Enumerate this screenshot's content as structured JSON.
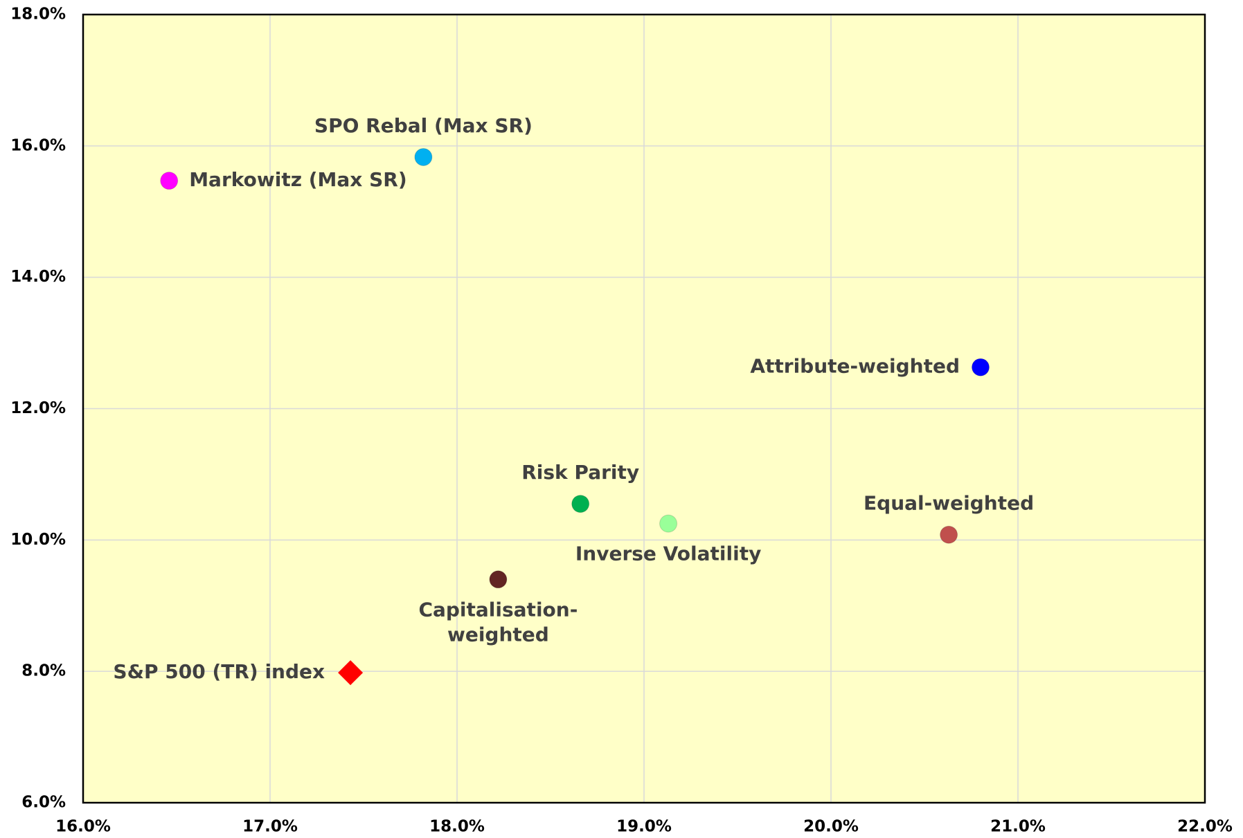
{
  "chart_data": {
    "type": "scatter",
    "xlim": [
      16,
      22
    ],
    "xticks": [
      {
        "value": 16,
        "label": "16.0%"
      },
      {
        "value": 17,
        "label": "17.0%"
      },
      {
        "value": 18,
        "label": "18.0%"
      },
      {
        "value": 19,
        "label": "19.0%"
      },
      {
        "value": 20,
        "label": "20.0%"
      },
      {
        "value": 21,
        "label": "21.0%"
      },
      {
        "value": 22,
        "label": "22.0%"
      }
    ],
    "ylim": [
      6,
      18
    ],
    "yticks": [
      {
        "value": 6,
        "label": "6.0%"
      },
      {
        "value": 8,
        "label": "8.0%"
      },
      {
        "value": 10,
        "label": "10.0%"
      },
      {
        "value": 12,
        "label": "12.0%"
      },
      {
        "value": 14,
        "label": "14.0%"
      },
      {
        "value": 16,
        "label": "16.0%"
      },
      {
        "value": 18,
        "label": "18.0%"
      }
    ],
    "grid": true,
    "series": [
      {
        "name": "Markowitz (Max SR)",
        "color": "#ff00ff",
        "marker": "circle",
        "x": [
          16.46
        ],
        "values": [
          15.47
        ]
      },
      {
        "name": "SPO Rebal (Max SR)",
        "color": "#00b0f0",
        "marker": "circle",
        "x": [
          17.82
        ],
        "values": [
          15.83
        ]
      },
      {
        "name": "Attribute-weighted",
        "color": "#0000ff",
        "marker": "circle",
        "x": [
          20.8
        ],
        "values": [
          12.63
        ]
      },
      {
        "name": "Risk Parity",
        "color": "#00b050",
        "marker": "circle",
        "x": [
          18.66
        ],
        "values": [
          10.55
        ]
      },
      {
        "name": "Inverse Volatility",
        "color": "#99ff99",
        "marker": "circle",
        "x": [
          19.13
        ],
        "values": [
          10.25
        ]
      },
      {
        "name": "Equal-weighted",
        "color": "#c0504d",
        "marker": "circle",
        "x": [
          20.63
        ],
        "values": [
          10.08
        ]
      },
      {
        "name": "Capitalisation-weighted",
        "color": "#632523",
        "marker": "circle",
        "x": [
          18.22
        ],
        "values": [
          9.4
        ]
      },
      {
        "name": "S&P 500 (TR) index",
        "color": "#ff0000",
        "marker": "diamond",
        "x": [
          17.43
        ],
        "values": [
          7.98
        ]
      }
    ]
  }
}
